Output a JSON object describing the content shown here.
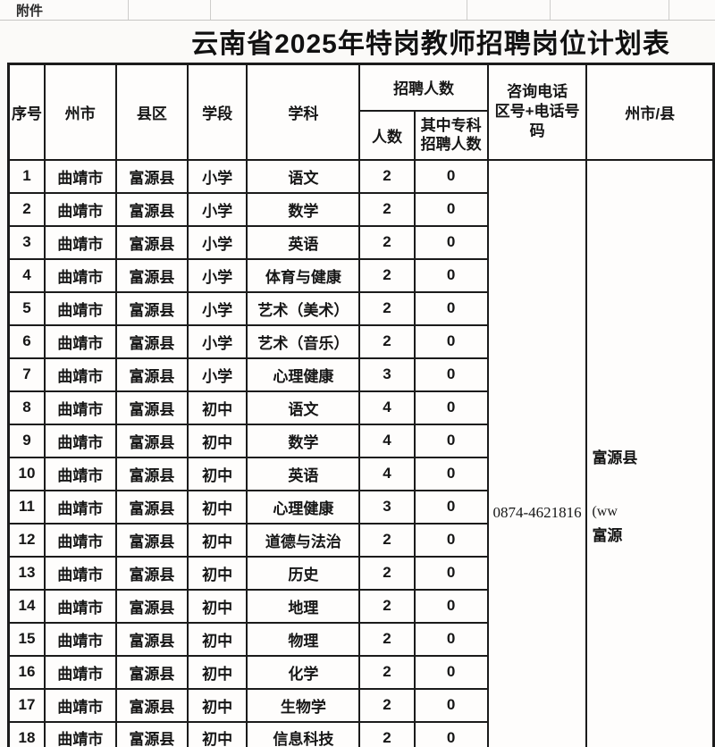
{
  "page": {
    "attachment_label": "附件",
    "title": "云南省2025年特岗教师招聘岗位计划表"
  },
  "table": {
    "headers": {
      "index": "序号",
      "prefecture": "州市",
      "county": "县区",
      "stage": "学段",
      "subject": "学科",
      "recruit_group": "招聘人数",
      "count": "人数",
      "college_l1": "其中专科",
      "college_l2": "招聘人数",
      "phone_l1": "咨询电话",
      "phone_l2": "区号+电话号码",
      "site_partial": "州市/县"
    },
    "contact": {
      "phone": "0874-4621816"
    },
    "site": {
      "line1": "富源县",
      "line2": "(ww",
      "line3": "富源"
    },
    "rows": [
      {
        "no": "1",
        "city": "曲靖市",
        "county": "富源县",
        "stage": "小学",
        "subject": "语文",
        "count": "2",
        "college": "0"
      },
      {
        "no": "2",
        "city": "曲靖市",
        "county": "富源县",
        "stage": "小学",
        "subject": "数学",
        "count": "2",
        "college": "0"
      },
      {
        "no": "3",
        "city": "曲靖市",
        "county": "富源县",
        "stage": "小学",
        "subject": "英语",
        "count": "2",
        "college": "0"
      },
      {
        "no": "4",
        "city": "曲靖市",
        "county": "富源县",
        "stage": "小学",
        "subject": "体育与健康",
        "count": "2",
        "college": "0"
      },
      {
        "no": "5",
        "city": "曲靖市",
        "county": "富源县",
        "stage": "小学",
        "subject": "艺术（美术）",
        "count": "2",
        "college": "0"
      },
      {
        "no": "6",
        "city": "曲靖市",
        "county": "富源县",
        "stage": "小学",
        "subject": "艺术（音乐）",
        "count": "2",
        "college": "0"
      },
      {
        "no": "7",
        "city": "曲靖市",
        "county": "富源县",
        "stage": "小学",
        "subject": "心理健康",
        "count": "3",
        "college": "0"
      },
      {
        "no": "8",
        "city": "曲靖市",
        "county": "富源县",
        "stage": "初中",
        "subject": "语文",
        "count": "4",
        "college": "0"
      },
      {
        "no": "9",
        "city": "曲靖市",
        "county": "富源县",
        "stage": "初中",
        "subject": "数学",
        "count": "4",
        "college": "0"
      },
      {
        "no": "10",
        "city": "曲靖市",
        "county": "富源县",
        "stage": "初中",
        "subject": "英语",
        "count": "4",
        "college": "0"
      },
      {
        "no": "11",
        "city": "曲靖市",
        "county": "富源县",
        "stage": "初中",
        "subject": "心理健康",
        "count": "3",
        "college": "0"
      },
      {
        "no": "12",
        "city": "曲靖市",
        "county": "富源县",
        "stage": "初中",
        "subject": "道德与法治",
        "count": "2",
        "college": "0"
      },
      {
        "no": "13",
        "city": "曲靖市",
        "county": "富源县",
        "stage": "初中",
        "subject": "历史",
        "count": "2",
        "college": "0"
      },
      {
        "no": "14",
        "city": "曲靖市",
        "county": "富源县",
        "stage": "初中",
        "subject": "地理",
        "count": "2",
        "college": "0"
      },
      {
        "no": "15",
        "city": "曲靖市",
        "county": "富源县",
        "stage": "初中",
        "subject": "物理",
        "count": "2",
        "college": "0"
      },
      {
        "no": "16",
        "city": "曲靖市",
        "county": "富源县",
        "stage": "初中",
        "subject": "化学",
        "count": "2",
        "college": "0"
      },
      {
        "no": "17",
        "city": "曲靖市",
        "county": "富源县",
        "stage": "初中",
        "subject": "生物学",
        "count": "2",
        "college": "0"
      },
      {
        "no": "18",
        "city": "曲靖市",
        "county": "富源县",
        "stage": "初中",
        "subject": "信息科技",
        "count": "2",
        "college": "0"
      }
    ]
  },
  "colors": {
    "border": "#1b1b1b",
    "faint_grid": "#cecdcb",
    "background": "#fbfaf8"
  }
}
